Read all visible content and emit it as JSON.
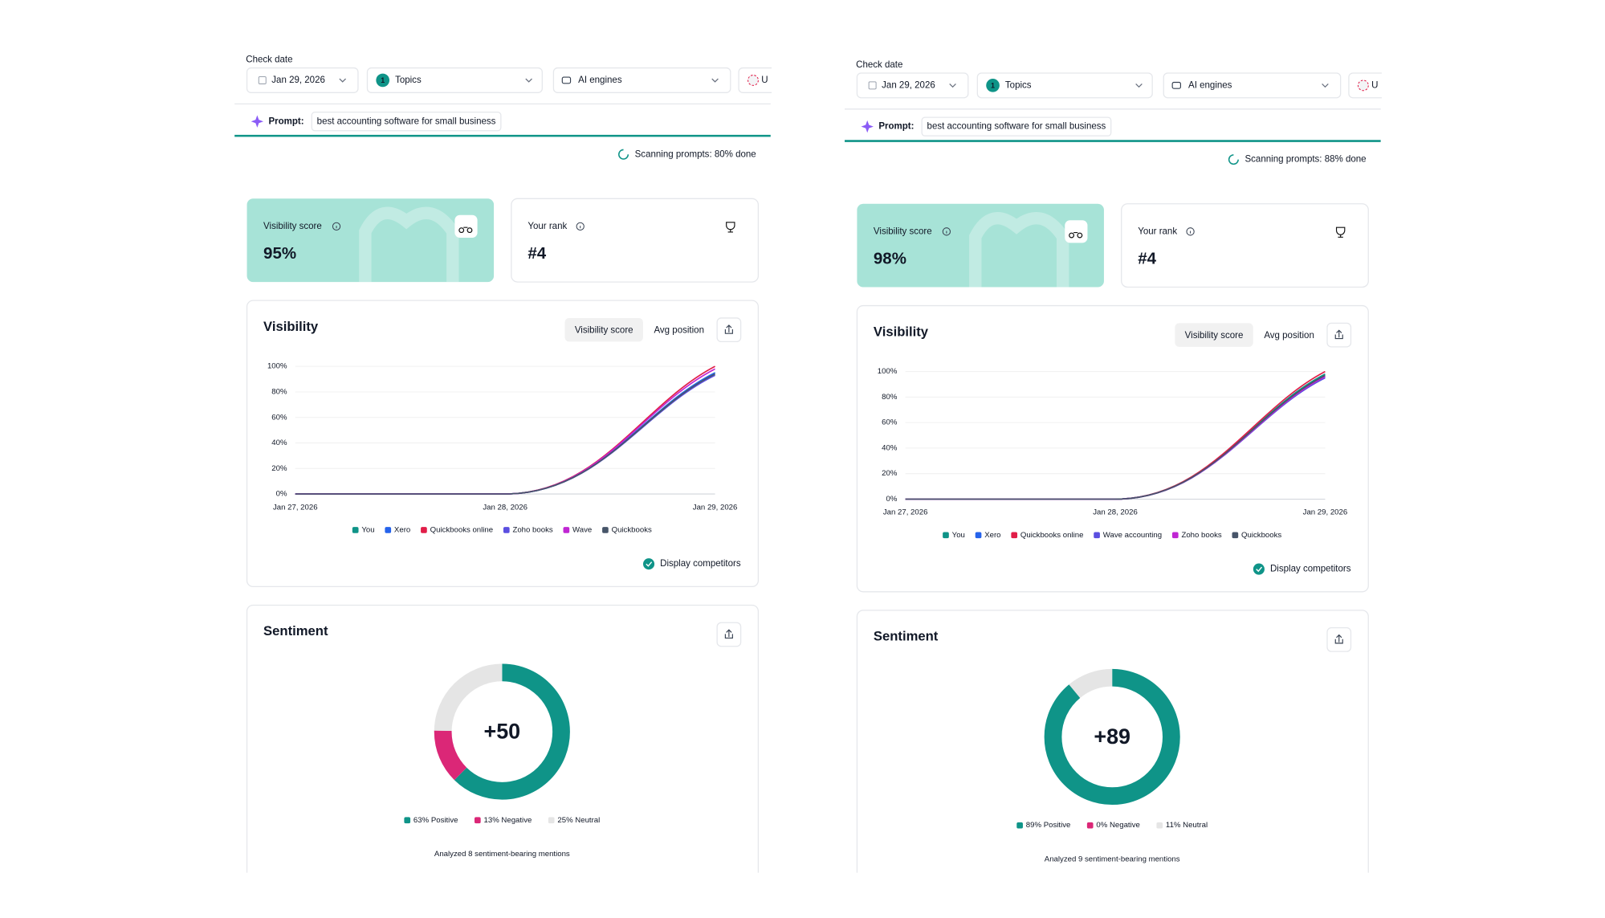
{
  "panels": [
    {
      "check_date_label": "Check date",
      "date": "Jan 29, 2026",
      "topics": {
        "badge": "1",
        "label": "Topics"
      },
      "engines": "AI engines",
      "region": "U",
      "prompt_label": "Prompt:",
      "prompt": "best accounting software for small business",
      "scanning": "Scanning prompts: 80% done",
      "cards": [
        {
          "label": "Visibility score",
          "value": "95%"
        },
        {
          "label": "Your rank",
          "value": "#4"
        }
      ],
      "visibility": {
        "type": "line",
        "title": "Visibility",
        "tabs": [
          "Visibility score",
          "Avg position"
        ],
        "x": [
          "Jan 27, 2026",
          "Jan 28, 2026",
          "Jan 29, 2026"
        ],
        "ylim": [
          0,
          100
        ],
        "yticks": [
          {
            "value": 0,
            "label": "0%"
          },
          {
            "value": 20,
            "label": "20%"
          },
          {
            "value": 40,
            "label": "40%"
          },
          {
            "value": 60,
            "label": "60%"
          },
          {
            "value": 80,
            "label": "80%"
          },
          {
            "value": 100,
            "label": "100%"
          }
        ],
        "grid": true,
        "series": [
          {
            "name": "You",
            "color": "#0f9488",
            "values": [
              0,
              0,
              95
            ]
          },
          {
            "name": "Xero",
            "color": "#2563eb",
            "values": [
              0,
              0,
              95
            ]
          },
          {
            "name": "Quickbooks online",
            "color": "#e11d48",
            "values": [
              0,
              0,
              100
            ]
          },
          {
            "name": "Zoho books",
            "color": "#5b4fe0",
            "values": [
              0,
              0,
              93
            ]
          },
          {
            "name": "Wave",
            "color": "#c026d3",
            "values": [
              0,
              0,
              98
            ]
          },
          {
            "name": "Quickbooks",
            "color": "#475569",
            "values": [
              0,
              0,
              94
            ]
          }
        ],
        "display_competitors": "Display competitors"
      },
      "sentiment": {
        "type": "donut",
        "title": "Sentiment",
        "score": "+50",
        "segments": [
          {
            "label": "63% Positive",
            "value": 63,
            "color": "#0f9488"
          },
          {
            "label": "13% Negative",
            "value": 13,
            "color": "#db2777"
          },
          {
            "label": "25% Neutral",
            "value": 25,
            "color": "#e5e5e5"
          }
        ],
        "footnote": "Analyzed 8 sentiment-bearing mentions"
      }
    },
    {
      "check_date_label": "Check date",
      "date": "Jan 29, 2026",
      "topics": {
        "badge": "1",
        "label": "Topics"
      },
      "engines": "AI engines",
      "region": "U",
      "prompt_label": "Prompt:",
      "prompt": "best accounting software for small business",
      "scanning": "Scanning prompts: 88% done",
      "cards": [
        {
          "label": "Visibility score",
          "value": "98%"
        },
        {
          "label": "Your rank",
          "value": "#4"
        }
      ],
      "visibility": {
        "type": "line",
        "title": "Visibility",
        "tabs": [
          "Visibility score",
          "Avg position"
        ],
        "x": [
          "Jan 27, 2026",
          "Jan 28, 2026",
          "Jan 29, 2026"
        ],
        "ylim": [
          0,
          100
        ],
        "yticks": [
          {
            "value": 0,
            "label": "0%"
          },
          {
            "value": 20,
            "label": "20%"
          },
          {
            "value": 40,
            "label": "40%"
          },
          {
            "value": 60,
            "label": "60%"
          },
          {
            "value": 80,
            "label": "80%"
          },
          {
            "value": 100,
            "label": "100%"
          }
        ],
        "grid": true,
        "series": [
          {
            "name": "You",
            "color": "#0f9488",
            "values": [
              0,
              0,
              98
            ]
          },
          {
            "name": "Xero",
            "color": "#2563eb",
            "values": [
              0,
              0,
              96
            ]
          },
          {
            "name": "Quickbooks online",
            "color": "#e11d48",
            "values": [
              0,
              0,
              100
            ]
          },
          {
            "name": "Wave accounting",
            "color": "#5b4fe0",
            "values": [
              0,
              0,
              95
            ]
          },
          {
            "name": "Zoho books",
            "color": "#c026d3",
            "values": [
              0,
              0,
              96
            ]
          },
          {
            "name": "Quickbooks",
            "color": "#475569",
            "values": [
              0,
              0,
              97
            ]
          }
        ],
        "display_competitors": "Display competitors"
      },
      "sentiment": {
        "type": "donut",
        "title": "Sentiment",
        "score": "+89",
        "segments": [
          {
            "label": "89% Positive",
            "value": 89,
            "color": "#0f9488"
          },
          {
            "label": "0% Negative",
            "value": 0,
            "color": "#db2777"
          },
          {
            "label": "11% Neutral",
            "value": 11,
            "color": "#e5e5e5"
          }
        ],
        "footnote": "Analyzed 9 sentiment-bearing mentions"
      }
    }
  ]
}
